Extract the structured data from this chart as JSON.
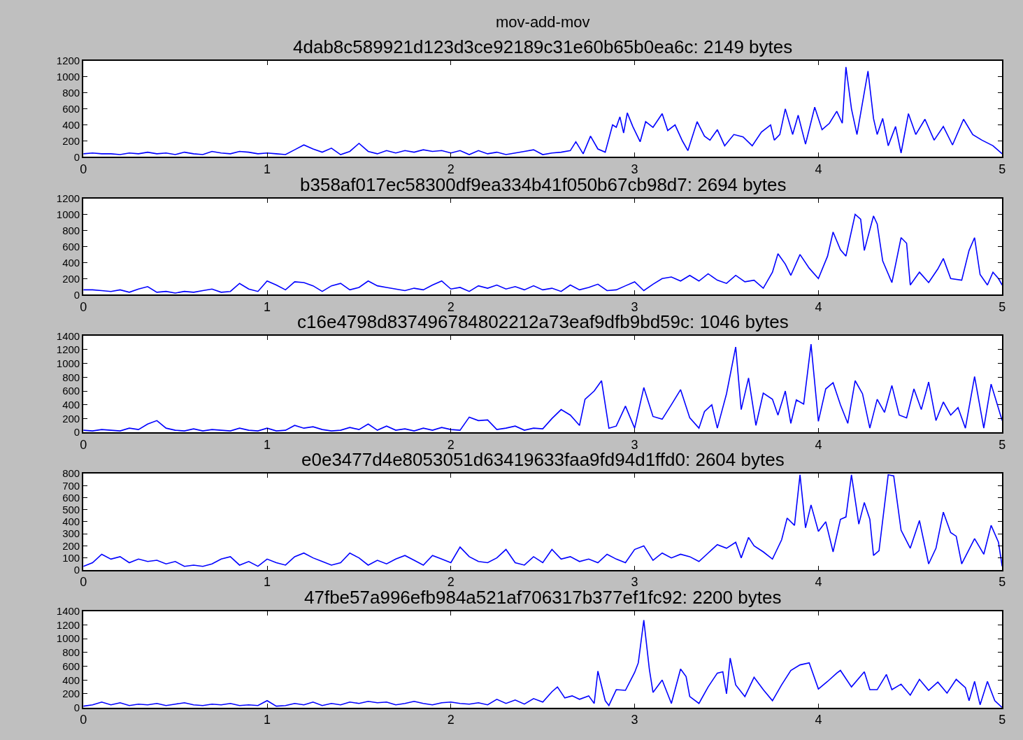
{
  "chart_data": [
    {
      "type": "line",
      "title": "4dab8c589921d123d3ce92189c31e60b65b0ea6c: 2149 bytes",
      "annotations": [
        "mov-add-mov"
      ],
      "xlim": [
        0,
        5
      ],
      "xticks": [
        0,
        1,
        2,
        3,
        4,
        5
      ],
      "ylim": [
        0,
        1200
      ],
      "yticks": [
        0,
        200,
        400,
        600,
        800,
        1000,
        1200
      ],
      "x": [
        0,
        0.05,
        0.1,
        0.15,
        0.2,
        0.25,
        0.3,
        0.35,
        0.4,
        0.45,
        0.5,
        0.55,
        0.6,
        0.65,
        0.7,
        0.75,
        0.8,
        0.85,
        0.9,
        0.95,
        1.0,
        1.05,
        1.1,
        1.15,
        1.2,
        1.25,
        1.3,
        1.35,
        1.4,
        1.45,
        1.5,
        1.55,
        1.6,
        1.65,
        1.7,
        1.75,
        1.8,
        1.85,
        1.9,
        1.95,
        2.0,
        2.05,
        2.1,
        2.15,
        2.2,
        2.25,
        2.3,
        2.35,
        2.4,
        2.45,
        2.5,
        2.55,
        2.6,
        2.65,
        2.68,
        2.72,
        2.76,
        2.8,
        2.84,
        2.88,
        2.9,
        2.92,
        2.94,
        2.96,
        2.99,
        3.03,
        3.06,
        3.1,
        3.15,
        3.18,
        3.22,
        3.26,
        3.29,
        3.34,
        3.38,
        3.41,
        3.45,
        3.49,
        3.54,
        3.59,
        3.64,
        3.69,
        3.74,
        3.76,
        3.79,
        3.82,
        3.86,
        3.89,
        3.93,
        3.98,
        4.02,
        4.06,
        4.1,
        4.13,
        4.15,
        4.18,
        4.21,
        4.27,
        4.3,
        4.32,
        4.35,
        4.38,
        4.42,
        4.45,
        4.49,
        4.53,
        4.58,
        4.63,
        4.68,
        4.73,
        4.79,
        4.84,
        4.89,
        4.95,
        5.0
      ],
      "series": [
        {
          "color": "#0000ff",
          "values": [
            40,
            50,
            40,
            40,
            30,
            50,
            40,
            60,
            40,
            50,
            30,
            60,
            40,
            30,
            70,
            50,
            40,
            70,
            60,
            40,
            50,
            40,
            30,
            90,
            150,
            100,
            60,
            110,
            30,
            70,
            170,
            70,
            40,
            80,
            50,
            80,
            60,
            90,
            70,
            80,
            50,
            80,
            30,
            80,
            40,
            60,
            30,
            50,
            70,
            90,
            30,
            50,
            60,
            80,
            190,
            40,
            260,
            100,
            60,
            400,
            370,
            500,
            300,
            550,
            380,
            190,
            440,
            370,
            540,
            330,
            400,
            200,
            80,
            440,
            260,
            210,
            340,
            140,
            280,
            250,
            140,
            310,
            400,
            210,
            280,
            600,
            280,
            520,
            160,
            620,
            340,
            420,
            570,
            420,
            1120,
            600,
            280,
            1070,
            480,
            280,
            480,
            140,
            380,
            50,
            540,
            280,
            470,
            210,
            380,
            150,
            470,
            280,
            210,
            140,
            40
          ]
        }
      ]
    },
    {
      "type": "line",
      "title": "b358af017ec58300df9ea334b41f050b67cb98d7: 2694 bytes",
      "xlim": [
        0,
        5
      ],
      "xticks": [
        0,
        1,
        2,
        3,
        4,
        5
      ],
      "ylim": [
        0,
        1200
      ],
      "yticks": [
        0,
        200,
        400,
        600,
        800,
        1000,
        1200
      ],
      "x": [
        0,
        0.05,
        0.1,
        0.15,
        0.2,
        0.25,
        0.3,
        0.35,
        0.4,
        0.45,
        0.5,
        0.55,
        0.6,
        0.65,
        0.7,
        0.75,
        0.8,
        0.85,
        0.9,
        0.95,
        1.0,
        1.05,
        1.1,
        1.15,
        1.2,
        1.25,
        1.3,
        1.35,
        1.4,
        1.45,
        1.5,
        1.55,
        1.6,
        1.65,
        1.7,
        1.75,
        1.8,
        1.85,
        1.9,
        1.95,
        2.0,
        2.05,
        2.1,
        2.15,
        2.2,
        2.25,
        2.3,
        2.35,
        2.4,
        2.45,
        2.5,
        2.55,
        2.6,
        2.65,
        2.7,
        2.75,
        2.8,
        2.85,
        2.9,
        2.95,
        3.0,
        3.05,
        3.1,
        3.15,
        3.2,
        3.25,
        3.3,
        3.35,
        3.4,
        3.45,
        3.5,
        3.55,
        3.6,
        3.65,
        3.7,
        3.75,
        3.78,
        3.82,
        3.85,
        3.9,
        3.95,
        4.0,
        4.05,
        4.08,
        4.12,
        4.15,
        4.2,
        4.23,
        4.25,
        4.3,
        4.32,
        4.35,
        4.4,
        4.45,
        4.48,
        4.5,
        4.55,
        4.6,
        4.65,
        4.68,
        4.72,
        4.78,
        4.82,
        4.85,
        4.88,
        4.92,
        4.95,
        4.98,
        5.0
      ],
      "series": [
        {
          "color": "#0000ff",
          "values": [
            60,
            60,
            50,
            40,
            60,
            30,
            70,
            100,
            30,
            40,
            20,
            40,
            30,
            50,
            70,
            30,
            40,
            140,
            70,
            40,
            170,
            120,
            60,
            160,
            150,
            110,
            40,
            110,
            140,
            60,
            90,
            170,
            110,
            90,
            70,
            50,
            80,
            60,
            120,
            170,
            70,
            90,
            40,
            110,
            80,
            120,
            70,
            100,
            60,
            110,
            60,
            80,
            40,
            120,
            60,
            90,
            130,
            50,
            60,
            110,
            160,
            50,
            130,
            200,
            220,
            170,
            240,
            170,
            260,
            180,
            140,
            240,
            160,
            180,
            80,
            280,
            510,
            380,
            240,
            500,
            330,
            200,
            480,
            780,
            560,
            480,
            1000,
            940,
            550,
            980,
            880,
            420,
            150,
            710,
            640,
            120,
            280,
            150,
            320,
            450,
            200,
            180,
            550,
            710,
            250,
            120,
            280,
            200,
            120
          ]
        }
      ]
    },
    {
      "type": "line",
      "title": "c16e4798d837496784802212a73eaf9dfb9bd59c: 1046 bytes",
      "xlim": [
        0,
        5
      ],
      "xticks": [
        0,
        1,
        2,
        3,
        4,
        5
      ],
      "ylim": [
        0,
        1400
      ],
      "yticks": [
        0,
        200,
        400,
        600,
        800,
        1000,
        1200,
        1400
      ],
      "x": [
        0,
        0.05,
        0.1,
        0.15,
        0.2,
        0.25,
        0.3,
        0.35,
        0.4,
        0.45,
        0.5,
        0.55,
        0.6,
        0.65,
        0.7,
        0.75,
        0.8,
        0.85,
        0.9,
        0.95,
        1.0,
        1.05,
        1.1,
        1.15,
        1.2,
        1.25,
        1.3,
        1.35,
        1.4,
        1.45,
        1.5,
        1.55,
        1.6,
        1.65,
        1.7,
        1.75,
        1.8,
        1.85,
        1.9,
        1.95,
        2.0,
        2.05,
        2.1,
        2.15,
        2.2,
        2.25,
        2.3,
        2.35,
        2.4,
        2.45,
        2.5,
        2.55,
        2.6,
        2.65,
        2.7,
        2.73,
        2.78,
        2.82,
        2.86,
        2.9,
        2.95,
        3.0,
        3.05,
        3.1,
        3.15,
        3.2,
        3.25,
        3.3,
        3.35,
        3.38,
        3.42,
        3.45,
        3.5,
        3.55,
        3.58,
        3.62,
        3.66,
        3.7,
        3.75,
        3.78,
        3.82,
        3.85,
        3.88,
        3.92,
        3.96,
        4.0,
        4.04,
        4.08,
        4.12,
        4.16,
        4.2,
        4.24,
        4.28,
        4.32,
        4.36,
        4.4,
        4.44,
        4.48,
        4.52,
        4.56,
        4.6,
        4.64,
        4.68,
        4.72,
        4.76,
        4.8,
        4.85,
        4.9,
        4.94,
        5.0
      ],
      "series": [
        {
          "color": "#0000ff",
          "values": [
            30,
            20,
            40,
            30,
            20,
            60,
            40,
            120,
            170,
            60,
            30,
            20,
            50,
            20,
            40,
            30,
            20,
            60,
            30,
            20,
            60,
            20,
            30,
            100,
            60,
            80,
            40,
            20,
            30,
            70,
            40,
            120,
            30,
            90,
            30,
            50,
            20,
            60,
            30,
            70,
            40,
            30,
            220,
            170,
            180,
            40,
            60,
            90,
            30,
            60,
            50,
            200,
            330,
            250,
            100,
            480,
            600,
            750,
            60,
            90,
            380,
            60,
            650,
            230,
            190,
            400,
            620,
            210,
            60,
            300,
            400,
            60,
            560,
            1240,
            330,
            790,
            100,
            570,
            480,
            250,
            600,
            130,
            470,
            410,
            1280,
            160,
            630,
            720,
            400,
            130,
            750,
            560,
            60,
            480,
            290,
            680,
            250,
            210,
            630,
            330,
            730,
            170,
            440,
            250,
            360,
            60,
            810,
            60,
            700,
            170
          ]
        }
      ]
    },
    {
      "type": "line",
      "title": "e0e3477d4e8053051d63419633faa9fd94d1ffd0: 2604 bytes",
      "xlim": [
        0,
        5
      ],
      "xticks": [
        0,
        1,
        2,
        3,
        4,
        5
      ],
      "ylim": [
        0,
        800
      ],
      "yticks": [
        0,
        100,
        200,
        300,
        400,
        500,
        600,
        700,
        800
      ],
      "x": [
        0,
        0.05,
        0.1,
        0.15,
        0.2,
        0.25,
        0.3,
        0.35,
        0.4,
        0.45,
        0.5,
        0.55,
        0.6,
        0.65,
        0.7,
        0.75,
        0.8,
        0.85,
        0.9,
        0.95,
        1.0,
        1.05,
        1.1,
        1.15,
        1.2,
        1.25,
        1.3,
        1.35,
        1.4,
        1.45,
        1.5,
        1.55,
        1.6,
        1.65,
        1.7,
        1.75,
        1.8,
        1.85,
        1.9,
        1.95,
        2.0,
        2.05,
        2.1,
        2.15,
        2.2,
        2.25,
        2.3,
        2.35,
        2.4,
        2.45,
        2.5,
        2.55,
        2.6,
        2.65,
        2.7,
        2.75,
        2.8,
        2.85,
        2.9,
        2.95,
        3.0,
        3.05,
        3.1,
        3.15,
        3.2,
        3.25,
        3.3,
        3.35,
        3.4,
        3.45,
        3.5,
        3.55,
        3.58,
        3.62,
        3.65,
        3.7,
        3.75,
        3.8,
        3.83,
        3.87,
        3.9,
        3.93,
        3.96,
        4.0,
        4.04,
        4.08,
        4.12,
        4.15,
        4.18,
        4.22,
        4.25,
        4.28,
        4.3,
        4.33,
        4.38,
        4.41,
        4.45,
        4.5,
        4.55,
        4.6,
        4.64,
        4.68,
        4.72,
        4.75,
        4.78,
        4.82,
        4.85,
        4.9,
        4.94,
        4.98,
        5.0
      ],
      "series": [
        {
          "color": "#0000ff",
          "values": [
            30,
            60,
            130,
            90,
            110,
            60,
            90,
            70,
            80,
            50,
            70,
            30,
            40,
            30,
            50,
            90,
            110,
            40,
            70,
            30,
            90,
            60,
            40,
            110,
            140,
            100,
            70,
            40,
            60,
            140,
            100,
            40,
            80,
            50,
            90,
            120,
            80,
            40,
            120,
            90,
            60,
            190,
            110,
            70,
            60,
            100,
            170,
            60,
            40,
            110,
            60,
            170,
            90,
            110,
            70,
            90,
            60,
            130,
            90,
            60,
            170,
            200,
            80,
            140,
            100,
            130,
            110,
            70,
            140,
            210,
            180,
            230,
            100,
            270,
            200,
            150,
            90,
            250,
            430,
            370,
            790,
            350,
            540,
            320,
            400,
            150,
            420,
            440,
            790,
            380,
            560,
            420,
            120,
            160,
            790,
            780,
            330,
            180,
            410,
            50,
            180,
            480,
            310,
            280,
            50,
            170,
            260,
            130,
            370,
            230,
            30
          ]
        }
      ]
    },
    {
      "type": "line",
      "title": "47fbe57a996efb984a521af706317b377ef1fc92: 2200 bytes",
      "xlim": [
        0,
        5
      ],
      "xticks": [
        0,
        1,
        2,
        3,
        4,
        5
      ],
      "ylim": [
        0,
        1400
      ],
      "yticks": [
        0,
        200,
        400,
        600,
        800,
        1000,
        1200,
        1400
      ],
      "x": [
        0,
        0.05,
        0.1,
        0.15,
        0.2,
        0.25,
        0.3,
        0.35,
        0.4,
        0.45,
        0.5,
        0.55,
        0.6,
        0.65,
        0.7,
        0.75,
        0.8,
        0.85,
        0.9,
        0.95,
        1.0,
        1.05,
        1.1,
        1.15,
        1.2,
        1.25,
        1.3,
        1.35,
        1.4,
        1.45,
        1.5,
        1.55,
        1.6,
        1.65,
        1.7,
        1.75,
        1.8,
        1.85,
        1.9,
        1.95,
        2.0,
        2.05,
        2.1,
        2.15,
        2.2,
        2.25,
        2.3,
        2.35,
        2.4,
        2.45,
        2.5,
        2.55,
        2.58,
        2.62,
        2.66,
        2.7,
        2.75,
        2.78,
        2.8,
        2.84,
        2.86,
        2.9,
        2.95,
        3.0,
        3.02,
        3.05,
        3.08,
        3.1,
        3.15,
        3.2,
        3.25,
        3.28,
        3.3,
        3.35,
        3.4,
        3.45,
        3.48,
        3.5,
        3.52,
        3.55,
        3.6,
        3.65,
        3.7,
        3.75,
        3.8,
        3.85,
        3.9,
        3.95,
        4.0,
        4.05,
        4.1,
        4.12,
        4.18,
        4.25,
        4.28,
        4.32,
        4.37,
        4.4,
        4.45,
        4.5,
        4.55,
        4.6,
        4.65,
        4.7,
        4.75,
        4.8,
        4.82,
        4.85,
        4.88,
        4.92,
        4.96,
        5.0
      ],
      "series": [
        {
          "color": "#0000ff",
          "values": [
            20,
            40,
            80,
            40,
            70,
            30,
            50,
            40,
            60,
            30,
            50,
            70,
            40,
            30,
            50,
            40,
            60,
            30,
            40,
            30,
            100,
            20,
            30,
            60,
            40,
            80,
            30,
            60,
            40,
            80,
            60,
            90,
            70,
            80,
            40,
            60,
            90,
            60,
            40,
            70,
            80,
            60,
            50,
            70,
            40,
            120,
            60,
            110,
            50,
            130,
            80,
            230,
            300,
            140,
            170,
            120,
            170,
            60,
            530,
            100,
            30,
            260,
            250,
            510,
            650,
            1270,
            560,
            220,
            400,
            60,
            560,
            450,
            160,
            60,
            300,
            500,
            520,
            200,
            720,
            330,
            160,
            440,
            260,
            100,
            330,
            540,
            620,
            650,
            270,
            380,
            500,
            540,
            300,
            520,
            260,
            260,
            480,
            260,
            340,
            180,
            410,
            250,
            370,
            210,
            410,
            290,
            100,
            380,
            40,
            380,
            100,
            0
          ]
        }
      ]
    }
  ]
}
